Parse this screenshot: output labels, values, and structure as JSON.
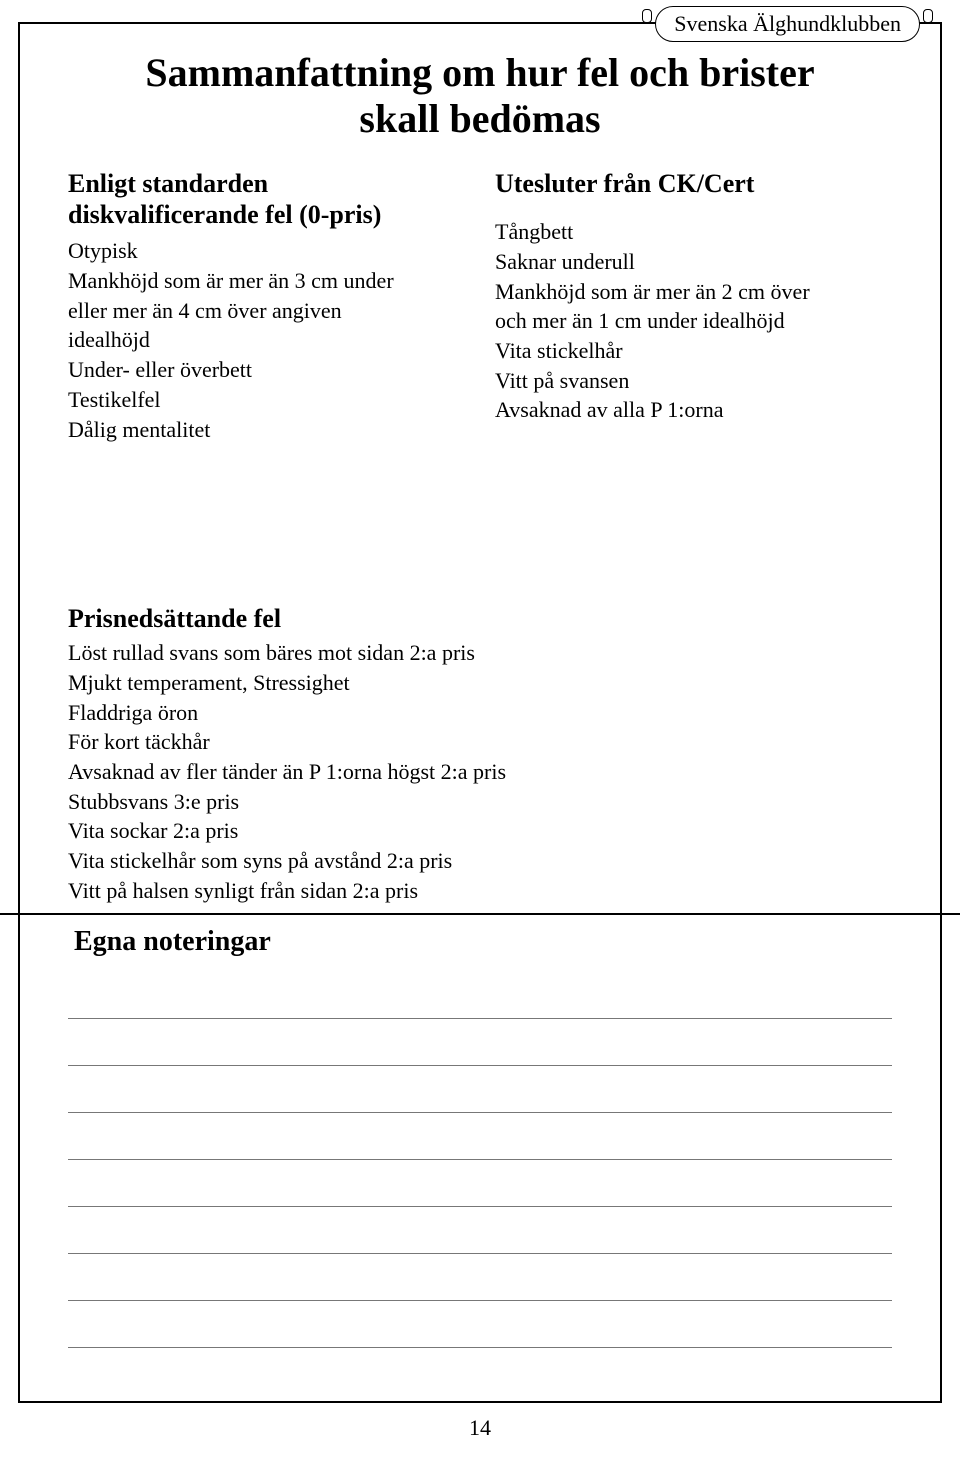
{
  "header_tab": "Svenska Älghundklubben",
  "title_line1": "Sammanfattning om hur fel och brister",
  "title_line2": "skall bedömas",
  "left": {
    "heading_line1": "Enligt standarden",
    "heading_line2": "diskvalificerande fel (0-pris)",
    "items": [
      "Otypisk",
      "Mankhöjd som är mer än 3 cm under",
      "eller mer än 4 cm över angiven",
      "idealhöjd",
      "Under- eller överbett",
      "Testikelfel",
      "Dålig mentalitet"
    ]
  },
  "right": {
    "heading": "Utesluter från CK/Cert",
    "items": [
      "Tångbett",
      "Saknar underull",
      "Mankhöjd som är mer än 2 cm över",
      "och mer än 1 cm under idealhöjd",
      "Vita stickelhår",
      "Vitt på svansen",
      "Avsaknad av alla P 1:orna"
    ]
  },
  "section2": {
    "heading": "Prisnedsättande fel",
    "items": [
      "Löst rullad svans som bäres mot sidan 2:a pris",
      "Mjukt temperament, Stressighet",
      "Fladdriga öron",
      "För kort täckhår",
      "Avsaknad av fler tänder än P 1:orna högst 2:a pris",
      "Stubbsvans 3:e pris",
      "Vita sockar 2:a pris",
      "Vita stickelhår som syns på avstånd 2:a pris",
      "Vitt på halsen synligt från sidan 2:a pris"
    ]
  },
  "notes_heading": "Egna noteringar",
  "note_line_count": 8,
  "page_number": "14"
}
